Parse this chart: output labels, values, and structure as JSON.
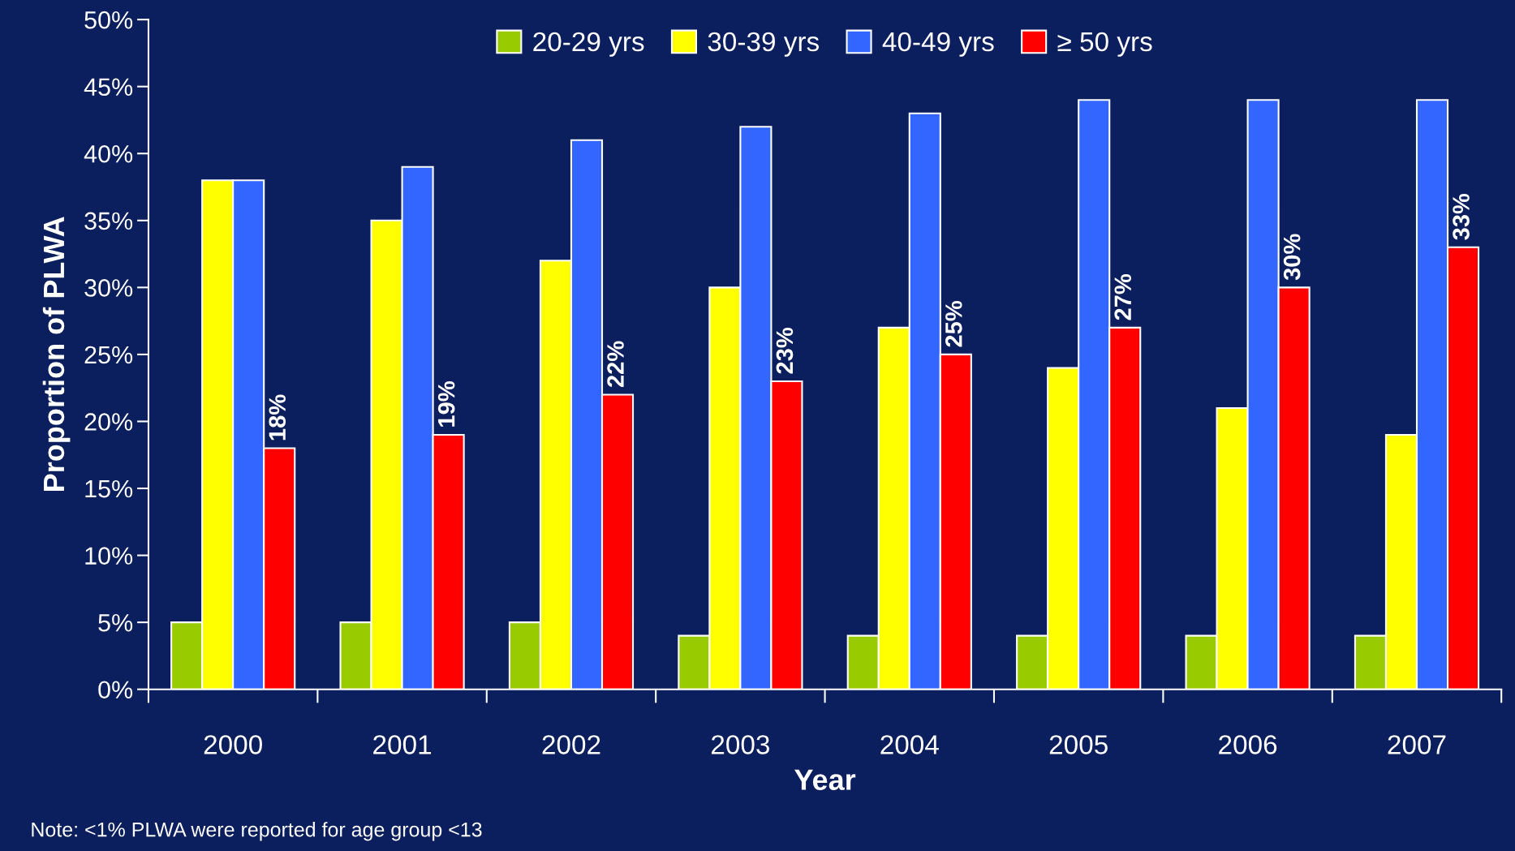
{
  "chart_data": {
    "type": "bar",
    "xlabel": "Year",
    "ylabel": "Proportion of PLWA",
    "categories": [
      "2000",
      "2001",
      "2002",
      "2003",
      "2004",
      "2005",
      "2006",
      "2007"
    ],
    "series": [
      {
        "name": "20-29 yrs",
        "color": "#99cc00",
        "values": [
          5,
          5,
          5,
          4,
          4,
          4,
          4,
          4
        ]
      },
      {
        "name": "30-39 yrs",
        "color": "#ffff00",
        "values": [
          38,
          35,
          32,
          30,
          27,
          24,
          21,
          19
        ]
      },
      {
        "name": "40-49 yrs",
        "color": "#3366ff",
        "values": [
          38,
          39,
          41,
          42,
          43,
          44,
          44,
          44
        ]
      },
      {
        "name": "≥ 50 yrs",
        "color": "#ff0000",
        "values": [
          18,
          19,
          22,
          23,
          25,
          27,
          30,
          33
        ],
        "value_labels": [
          "18%",
          "19%",
          "22%",
          "23%",
          "25%",
          "27%",
          "30%",
          "33%"
        ]
      }
    ],
    "ylim": [
      0,
      50
    ],
    "yticks": [
      {
        "value": 0,
        "label": "0%"
      },
      {
        "value": 5,
        "label": "5%"
      },
      {
        "value": 10,
        "label": "10%"
      },
      {
        "value": 15,
        "label": "15%"
      },
      {
        "value": 20,
        "label": "20%"
      },
      {
        "value": 25,
        "label": "25%"
      },
      {
        "value": 30,
        "label": "30%"
      },
      {
        "value": 35,
        "label": "35%"
      },
      {
        "value": 40,
        "label": "40%"
      },
      {
        "value": 45,
        "label": "45%"
      },
      {
        "value": 50,
        "label": "50%"
      }
    ],
    "annotations": [
      "Note: <1% PLWA were reported for age group <13"
    ],
    "legend": "top",
    "grid": false
  }
}
